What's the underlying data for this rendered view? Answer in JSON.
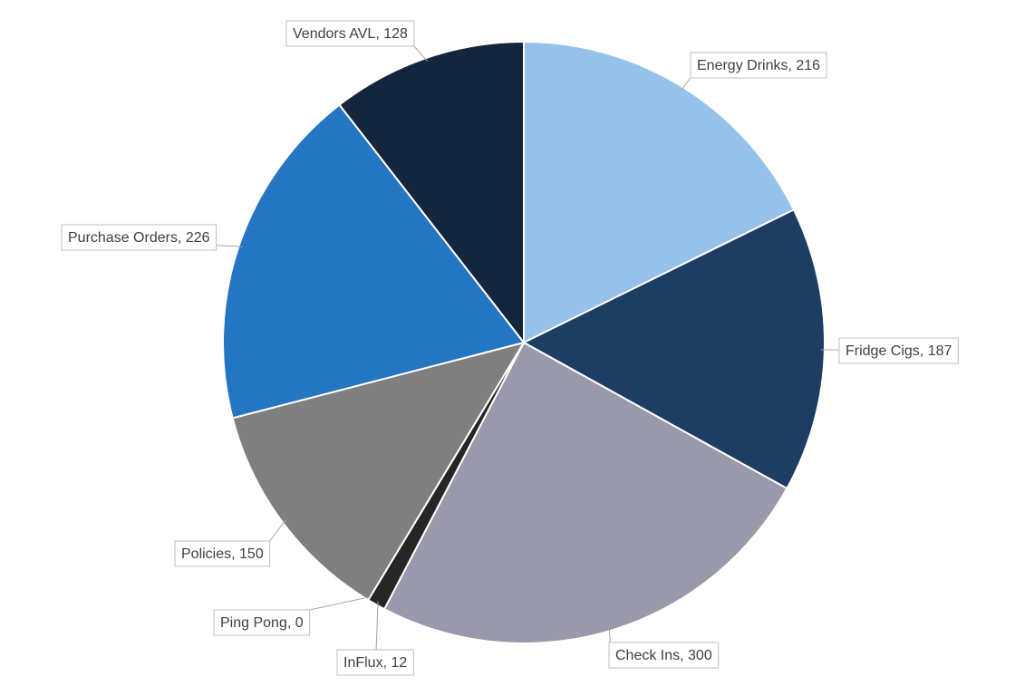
{
  "chart_data": {
    "type": "pie",
    "categories": [
      "Energy Drinks",
      "Fridge Cigs",
      "Check Ins",
      "InFlux",
      "Ping Pong",
      "Policies",
      "Purchase Orders",
      "Vendors AVL"
    ],
    "values": [
      216,
      187,
      300,
      12,
      0,
      150,
      226,
      128
    ],
    "value_labels": [
      "Energy Drinks, 216",
      "Fridge Cigs, 187",
      "Check Ins, 300",
      "InFlux, 12",
      "Ping Pong, 0",
      "Policies, 150",
      "Purchase Orders, 226",
      "Vendors AVL, 128"
    ],
    "colors": [
      "#95c1eb",
      "#1d3d63",
      "#9a99ab",
      "#262626",
      "#595959",
      "#7f7f7f",
      "#2475c2",
      "#13263d"
    ]
  }
}
